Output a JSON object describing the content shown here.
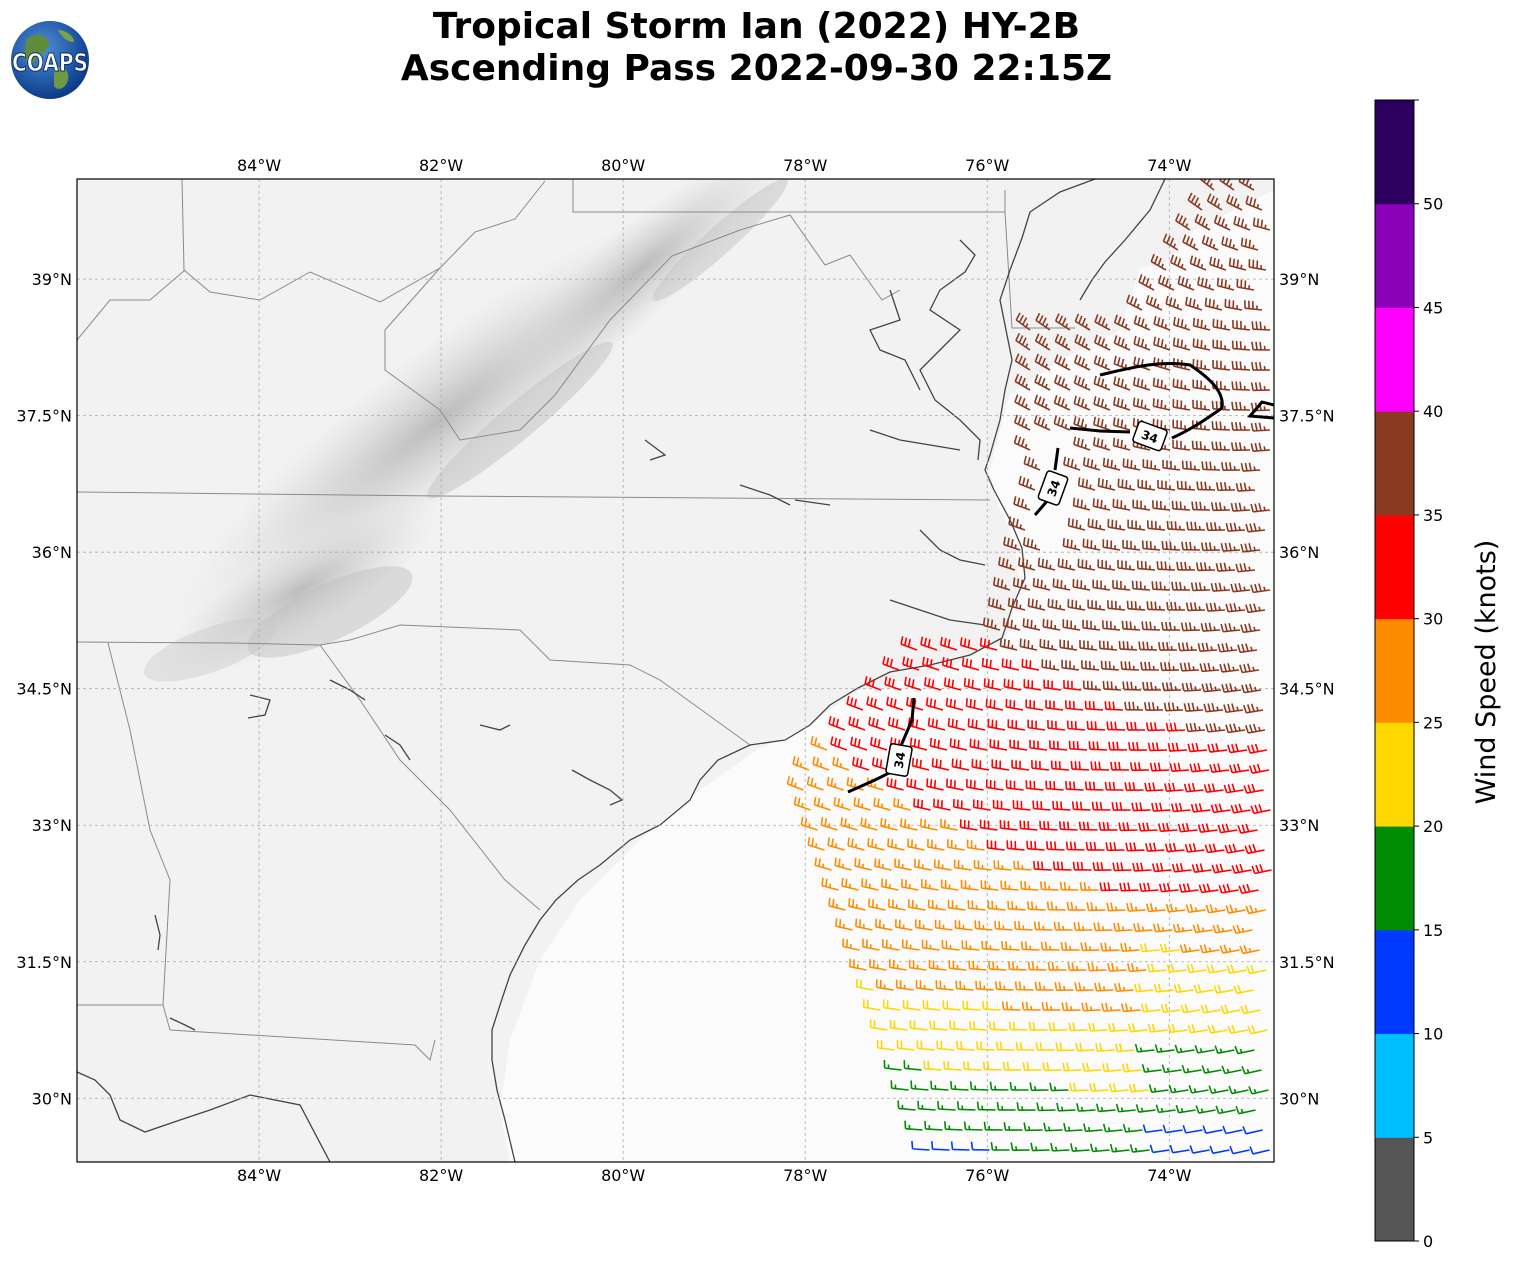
{
  "title": {
    "line1": "Tropical Storm Ian (2022) HY-2B",
    "line2": "Ascending Pass 2022-09-30 22:15Z"
  },
  "logo": {
    "text": "COAPS",
    "icon": "globe-icon"
  },
  "map": {
    "lon_range": [
      -86,
      -72.85
    ],
    "lat_range": [
      29.3,
      40.1
    ],
    "lon_ticks": [
      "84°W",
      "82°W",
      "80°W",
      "78°W",
      "76°W",
      "74°W"
    ],
    "lon_tick_values": [
      -84,
      -82,
      -80,
      -78,
      -76,
      -74
    ],
    "lat_ticks": [
      "39°N",
      "37.5°N",
      "36°N",
      "34.5°N",
      "33°N",
      "31.5°N",
      "30°N"
    ],
    "lat_tick_values": [
      39,
      37.5,
      36,
      34.5,
      33,
      31.5,
      30
    ],
    "gridlines": true,
    "terrain": "grayscale",
    "contour_label": "34",
    "contour_labels": [
      "34",
      "34",
      "34"
    ]
  },
  "colorbar": {
    "label": "Wind Speed (knots)",
    "ticks": [
      "0",
      "5",
      "10",
      "15",
      "20",
      "25",
      "30",
      "35",
      "40",
      "45",
      "50"
    ],
    "colors": [
      "#555555",
      "#00bfff",
      "#0039ff",
      "#008c00",
      "#ffd700",
      "#ff8c00",
      "#ff0000",
      "#8b3a22",
      "#ff00ff",
      "#8b00b8",
      "#2d0060"
    ]
  }
}
